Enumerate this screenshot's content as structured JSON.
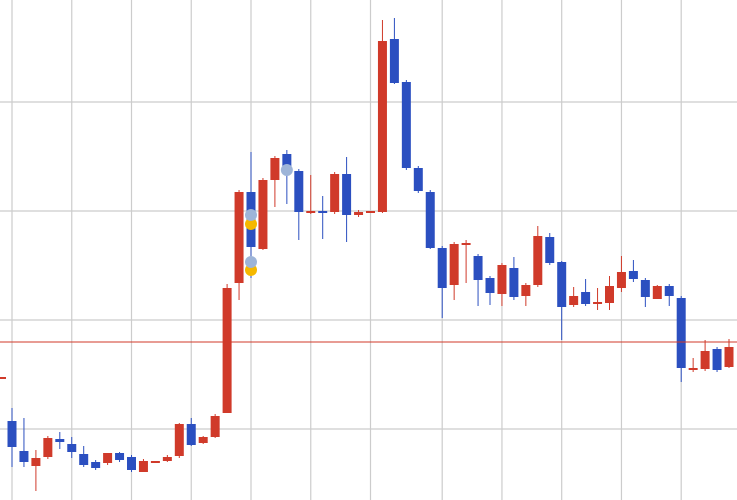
{
  "chart_data": {
    "type": "candlestick",
    "ylim": [
      0,
      500
    ],
    "yticks": [
      71,
      180,
      289,
      398
    ],
    "grid": true,
    "grid_color": "#cccccc",
    "x_grid_at": [
      0,
      5,
      10,
      15,
      20,
      25,
      30,
      36,
      41,
      46,
      51,
      56
    ],
    "up_color": "#d03a2a",
    "down_color": "#2b4fc0",
    "open": [
      79,
      49,
      34,
      43,
      61,
      56,
      46,
      38,
      37,
      47,
      43,
      28,
      37,
      39,
      44,
      76,
      57,
      63,
      87,
      217,
      308,
      251,
      320,
      346,
      329,
      287,
      289,
      288,
      326,
      285,
      287,
      288,
      461,
      418,
      332,
      308,
      252,
      215,
      255,
      244,
      222,
      206,
      232,
      204,
      215,
      263,
      238,
      195,
      208,
      196,
      197,
      212,
      229,
      220,
      201,
      214,
      202,
      130,
      131,
      151,
      133
    ],
    "high": [
      92,
      82,
      50,
      64,
      68,
      63,
      54,
      40,
      47,
      48,
      45,
      41,
      39,
      45,
      77,
      82,
      64,
      86,
      216,
      310,
      348,
      322,
      344,
      350,
      331,
      325,
      304,
      328,
      343,
      290,
      289,
      480,
      482,
      420,
      334,
      310,
      254,
      258,
      260,
      246,
      224,
      237,
      243,
      217,
      274,
      267,
      239,
      213,
      221,
      212,
      224,
      244,
      240,
      222,
      215,
      216,
      204,
      142,
      160,
      153,
      161
    ],
    "low": [
      33,
      33,
      9,
      41,
      51,
      42,
      33,
      30,
      35,
      38,
      28,
      28,
      37,
      38,
      42,
      54,
      56,
      62,
      87,
      200,
      222,
      250,
      293,
      296,
      260,
      286,
      261,
      286,
      258,
      283,
      287,
      287,
      416,
      330,
      307,
      251,
      182,
      200,
      217,
      194,
      195,
      194,
      200,
      194,
      213,
      235,
      160,
      193,
      194,
      190,
      190,
      208,
      218,
      193,
      201,
      194,
      118,
      128,
      129,
      128,
      132
    ],
    "close": [
      53,
      38,
      42,
      62,
      58,
      48,
      35,
      32,
      47,
      40,
      30,
      39,
      39,
      43,
      76,
      55,
      63,
      84,
      212,
      308,
      253,
      320,
      342,
      334,
      288,
      289,
      287,
      326,
      285,
      288,
      289,
      459,
      417,
      332,
      309,
      252,
      212,
      256,
      257,
      220,
      207,
      235,
      203,
      215,
      264,
      237,
      193,
      204,
      196,
      198,
      214,
      228,
      221,
      203,
      214,
      204,
      132,
      132,
      149,
      130,
      153
    ],
    "price_line": {
      "value": 158,
      "color": "#d03a2a"
    },
    "left_marker": {
      "value": 122,
      "color": "#d03a2a"
    },
    "markers": [
      {
        "index": 20,
        "value": 276,
        "color": "#f5b800"
      },
      {
        "index": 20,
        "value": 230,
        "color": "#f5b800"
      },
      {
        "index": 20,
        "value": 285,
        "color": "#9db4d8"
      },
      {
        "index": 20,
        "value": 238,
        "color": "#9db4d8"
      },
      {
        "index": 23,
        "value": 330,
        "color": "#9db4d8"
      }
    ]
  }
}
